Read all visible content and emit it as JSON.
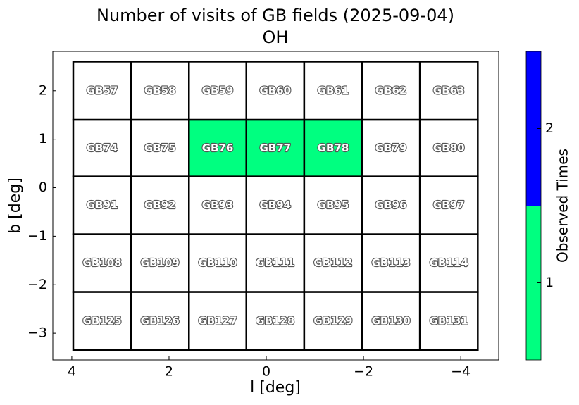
{
  "chart_data": {
    "type": "field-grid",
    "title": "Number of visits of GB fields (2025-09-04)",
    "subtitle": "OH",
    "x_label": "l [deg]",
    "y_label": "b [deg]",
    "xlim": [
      4.39,
      -4.78
    ],
    "ylim": [
      -3.55,
      2.81
    ],
    "xticks": [
      4,
      2,
      0,
      {
        "value": -2,
        "label": "−2"
      },
      {
        "value": -4,
        "label": "−4"
      }
    ],
    "yticks": [
      {
        "value": -3,
        "label": "−3"
      },
      {
        "value": -2,
        "label": "−2"
      },
      {
        "value": -1,
        "label": "−1"
      },
      0,
      1,
      2
    ],
    "x_edges": [
      3.97,
      2.78,
      1.59,
      0.41,
      -0.78,
      -1.97,
      -3.16,
      -4.35
    ],
    "y_edges": [
      2.6,
      1.4,
      0.23,
      -0.96,
      -2.15,
      -3.35
    ],
    "cells": [
      [
        "GB57",
        "GB58",
        "GB59",
        "GB60",
        "GB61",
        "GB62",
        "GB63"
      ],
      [
        "GB74",
        "GB75",
        "GB76",
        "GB77",
        "GB78",
        "GB79",
        "GB80"
      ],
      [
        "GB91",
        "GB92",
        "GB93",
        "GB94",
        "GB95",
        "GB96",
        "GB97"
      ],
      [
        "GB108",
        "GB109",
        "GB110",
        "GB111",
        "GB112",
        "GB113",
        "GB114"
      ],
      [
        "GB125",
        "GB126",
        "GB127",
        "GB128",
        "GB129",
        "GB130",
        "GB131"
      ]
    ],
    "values": [
      [
        0,
        0,
        0,
        0,
        0,
        0,
        0
      ],
      [
        0,
        0,
        1,
        1,
        1,
        0,
        0
      ],
      [
        0,
        0,
        0,
        0,
        0,
        0,
        0
      ],
      [
        0,
        0,
        0,
        0,
        0,
        0,
        0
      ],
      [
        0,
        0,
        0,
        0,
        0,
        0,
        0
      ]
    ],
    "colorbar": {
      "label": "Observed Times",
      "lim": [
        0.5,
        2.5
      ],
      "ticks": [
        1,
        2
      ],
      "colors": [
        "#00ff80",
        "#0000ff"
      ]
    }
  }
}
